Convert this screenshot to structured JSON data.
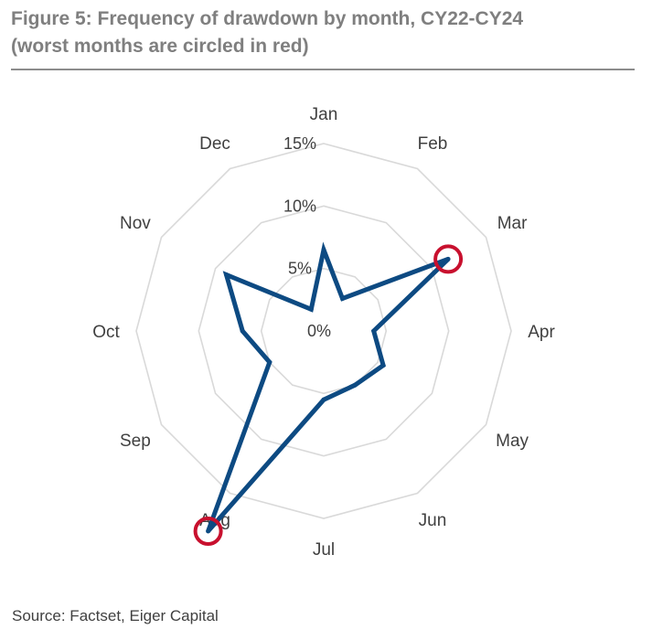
{
  "figure": {
    "title_line1": "Figure 5: Frequency of drawdown by month, CY22-CY24",
    "title_line2": "(worst months are circled in red)",
    "source": "Source: Factset, Eiger Capital"
  },
  "colors": {
    "title": "#7f7f7f",
    "grid": "#d9d9d9",
    "series": "#0d4a82",
    "highlight": "#c8102e",
    "text": "#404040"
  },
  "chart_data": {
    "type": "radar",
    "categories": [
      "Jan",
      "Feb",
      "Mar",
      "Apr",
      "May",
      "Jun",
      "Jul",
      "Aug",
      "Sep",
      "Oct",
      "Nov",
      "Dec"
    ],
    "series": [
      {
        "values": [
          6.5,
          3.0,
          11.5,
          4.0,
          5.5,
          5.0,
          5.5,
          18.5,
          5.0,
          6.5,
          9.0,
          2.0
        ]
      }
    ],
    "radial_ticks": [
      "0%",
      "5%",
      "10%",
      "15%"
    ],
    "range": [
      0,
      15
    ],
    "highlighted": [
      "Mar",
      "Aug"
    ],
    "grid": true,
    "legend": false
  }
}
